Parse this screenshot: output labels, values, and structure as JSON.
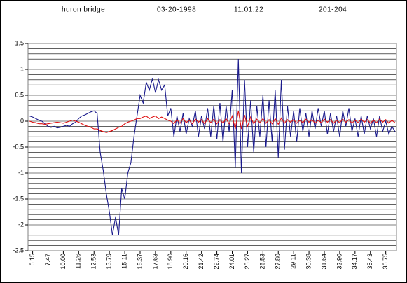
{
  "chart_data": {
    "type": "line",
    "title_parts": [
      "huron bridge",
      "03-20-1998",
      "11:01:22",
      "201-204"
    ],
    "categories": [
      null,
      "6.15",
      null,
      null,
      null,
      null,
      "7.47",
      null,
      null,
      null,
      null,
      "10.00",
      null,
      null,
      null,
      null,
      "11.26",
      null,
      null,
      null,
      null,
      "12.53",
      null,
      null,
      null,
      null,
      "13.79",
      null,
      null,
      null,
      null,
      "15.11",
      null,
      null,
      null,
      null,
      "16.37",
      null,
      null,
      null,
      null,
      "17.63",
      null,
      null,
      null,
      null,
      "18.90",
      null,
      null,
      null,
      null,
      "20.16",
      null,
      null,
      null,
      null,
      "21.42",
      null,
      null,
      null,
      null,
      "22.74",
      null,
      null,
      null,
      null,
      "24.01",
      null,
      null,
      null,
      null,
      "25.27",
      null,
      null,
      null,
      null,
      "26.53",
      null,
      null,
      null,
      null,
      "27.80",
      null,
      null,
      null,
      null,
      "29.11",
      null,
      null,
      null,
      null,
      "30.38",
      null,
      null,
      null,
      null,
      "31.64",
      null,
      null,
      null,
      null,
      "32.90",
      null,
      null,
      null,
      null,
      "34.17",
      null,
      null,
      null,
      null,
      "35.43",
      null,
      null,
      null,
      null,
      "36.75",
      null,
      null,
      null
    ],
    "series": [
      {
        "name": "blue",
        "color": "#1a1a8c",
        "values": [
          0.1,
          0.08,
          0.05,
          0.02,
          0,
          -0.05,
          -0.1,
          -0.12,
          -0.1,
          -0.13,
          -0.12,
          -0.1,
          -0.08,
          -0.1,
          -0.05,
          -0.02,
          0.05,
          0.1,
          0.12,
          0.15,
          0.18,
          0.2,
          0.15,
          -0.6,
          -0.95,
          -1.4,
          -1.75,
          -2.2,
          -1.85,
          -2.2,
          -1.3,
          -1.5,
          -1.0,
          -0.8,
          -0.3,
          0.1,
          0.5,
          0.35,
          0.75,
          0.6,
          0.82,
          0.55,
          0.8,
          0.6,
          0.7,
          0.1,
          0.25,
          -0.3,
          0.1,
          -0.2,
          0.15,
          -0.25,
          0.05,
          -0.1,
          0.2,
          -0.3,
          0.1,
          -0.15,
          0.25,
          -0.3,
          0.3,
          -0.35,
          0.35,
          -0.4,
          0.3,
          -0.2,
          0.6,
          -0.9,
          1.2,
          -1.0,
          0.8,
          -0.5,
          0.4,
          -0.6,
          0.3,
          -0.3,
          0.5,
          -0.5,
          0.4,
          -0.4,
          0.6,
          -0.7,
          0.8,
          -0.55,
          0.3,
          -0.3,
          0.2,
          -0.4,
          0.25,
          -0.2,
          0.15,
          -0.3,
          0.2,
          -0.15,
          0.25,
          -0.1,
          0.2,
          -0.25,
          0.15,
          -0.2,
          0.1,
          -0.3,
          0.2,
          -0.1,
          0.25,
          -0.2,
          0.05,
          -0.3,
          0.1,
          -0.25,
          0.1,
          -0.15,
          0.05,
          -0.3,
          0.1,
          -0.2,
          0,
          -0.25,
          -0.1,
          -0.2
        ]
      },
      {
        "name": "red",
        "color": "#e01010",
        "values": [
          0,
          -0.02,
          -0.03,
          -0.05,
          -0.05,
          -0.06,
          -0.05,
          -0.04,
          -0.03,
          -0.02,
          -0.03,
          -0.04,
          -0.02,
          0,
          0.02,
          0,
          -0.02,
          -0.05,
          -0.08,
          -0.1,
          -0.12,
          -0.15,
          -0.15,
          -0.18,
          -0.2,
          -0.22,
          -0.2,
          -0.18,
          -0.15,
          -0.12,
          -0.1,
          -0.05,
          -0.02,
          0,
          0.02,
          0.05,
          0.05,
          0.08,
          0.1,
          0.05,
          0.08,
          0.1,
          0.05,
          0.08,
          0.05,
          0.02,
          0,
          -0.05,
          0.03,
          -0.04,
          0.05,
          -0.03,
          0.02,
          -0.05,
          0.04,
          -0.02,
          0.03,
          -0.05,
          0.05,
          -0.03,
          0.04,
          -0.05,
          0.03,
          -0.04,
          0.05,
          -0.05,
          0.1,
          -0.15,
          0.2,
          -0.15,
          0.12,
          -0.1,
          0.08,
          -0.05,
          0.04,
          -0.03,
          0.05,
          -0.04,
          0.03,
          -0.05,
          0.05,
          -0.06,
          0.06,
          -0.04,
          0.03,
          -0.02,
          0.03,
          -0.04,
          0.02,
          -0.03,
          0.04,
          -0.02,
          0.03,
          -0.04,
          0.02,
          -0.03,
          0.04,
          -0.02,
          0.03,
          -0.04,
          0.02,
          -0.03,
          0.04,
          -0.02,
          0.03,
          -0.04,
          0.02,
          -0.03,
          0.04,
          -0.02,
          0.03,
          -0.04,
          0.02,
          -0.03,
          0.04,
          -0.02,
          0.03,
          -0.04,
          0.02,
          -0.03
        ]
      }
    ],
    "ylim": [
      -2.5,
      1.5
    ],
    "yticks": [
      -2.5,
      -2,
      -1.5,
      -1,
      -0.5,
      0,
      0.5,
      1,
      1.5
    ],
    "grid": true,
    "grid_step": 0.1
  }
}
